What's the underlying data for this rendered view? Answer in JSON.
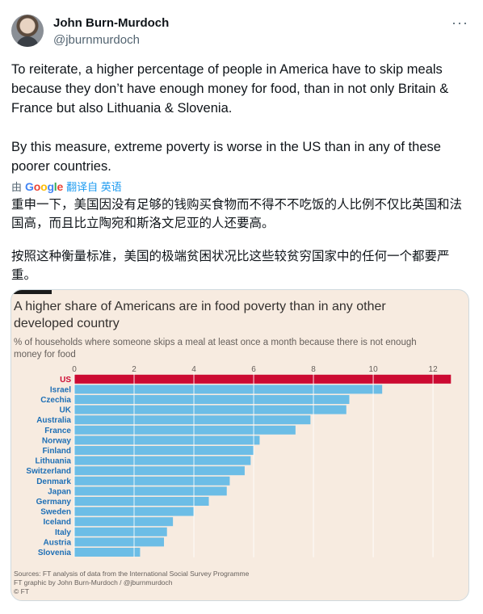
{
  "tweet": {
    "author_name": "John Burn-Murdoch",
    "author_handle": "@jburnmurdoch",
    "more_label": "···",
    "paragraph1": "To reiterate, a higher percentage of people in America have to skip meals because they don’t have enough money for food, than in not only Britain & France but also Lithuania & Slovenia.",
    "paragraph2": "By this measure, extreme poverty is worse in the US than in any of these poorer countries."
  },
  "translation": {
    "by_label": "由",
    "google_letters": [
      "G",
      "o",
      "o",
      "g",
      "l",
      "e"
    ],
    "action_label": "翻译自 英语",
    "paragraph1": "重申一下，美国因没有足够的钱购买食物而不得不不吃饭的人比例不仅比英国和法国高，而且比立陶宛和斯洛文尼亚的人还要高。",
    "paragraph2": "按照这种衡量标准，美国的极端贫困状况比这些较贫穷国家中的任何一个都要严重。"
  },
  "chart_data": {
    "type": "bar",
    "orientation": "horizontal",
    "title": "A higher share of Americans are in food poverty than in any other developed country",
    "subtitle": "% of households where someone skips a meal at least once a month because there is not enough money for food",
    "categories": [
      "US",
      "Israel",
      "Czechia",
      "UK",
      "Australia",
      "France",
      "Norway",
      "Finland",
      "Lithuania",
      "Switzerland",
      "Denmark",
      "Japan",
      "Germany",
      "Sweden",
      "Iceland",
      "Italy",
      "Austria",
      "Slovenia"
    ],
    "values": [
      12.6,
      10.3,
      9.2,
      9.1,
      7.9,
      7.4,
      6.2,
      6.0,
      5.9,
      5.7,
      5.2,
      5.1,
      4.5,
      4.0,
      3.3,
      3.1,
      3.0,
      2.2
    ],
    "highlight": "US",
    "xticks": [
      0,
      2,
      4,
      6,
      8,
      10,
      12
    ],
    "xlim": [
      0,
      12.7
    ],
    "grid": true,
    "colors": {
      "highlight": "#cc0a32",
      "bar": "#6cbde6",
      "background": "#f7ebe0",
      "gridline": "#ffffff",
      "label": "#1e6fb5"
    },
    "sources": [
      "Sources: FT analysis of data from the International Social Survey Programme",
      "FT graphic by John Burn-Murdoch / @jburnmurdoch",
      "© FT"
    ]
  }
}
